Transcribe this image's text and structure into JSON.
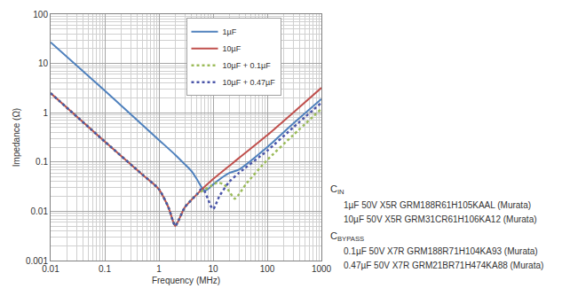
{
  "chart_data": {
    "type": "line",
    "x_label": "Frequency (MHz)",
    "y_label": "Impedance (Ω)",
    "log": true,
    "grid": true,
    "legend": "top",
    "xlim": [
      0.01,
      1000
    ],
    "xticks": [
      0.01,
      0.1,
      1,
      10,
      100,
      1000
    ],
    "ylim": [
      0.001,
      100
    ],
    "yticks": [
      0.001,
      0.01,
      0.1,
      1,
      10,
      100
    ],
    "series": [
      {
        "name": "1µF",
        "color": "#4f81bd",
        "line_style": "solid",
        "x": [
          0.01,
          0.1,
          1,
          2,
          3,
          4,
          5,
          6,
          7,
          8,
          10,
          20,
          30,
          100,
          300,
          1000
        ],
        "values": [
          27,
          2.8,
          0.28,
          0.14,
          0.09,
          0.065,
          0.045,
          0.032,
          0.026,
          0.028,
          0.035,
          0.06,
          0.07,
          0.2,
          0.6,
          1.9
        ]
      },
      {
        "name": "10µF",
        "color": "#c0504d",
        "line_style": "solid",
        "x": [
          0.01,
          0.1,
          0.5,
          1,
          1.5,
          1.8,
          2,
          2.3,
          3,
          5,
          10,
          30,
          100,
          300,
          1000
        ],
        "values": [
          2.5,
          0.26,
          0.055,
          0.028,
          0.012,
          0.0065,
          0.005,
          0.0065,
          0.012,
          0.022,
          0.045,
          0.12,
          0.35,
          1.0,
          3.2
        ]
      },
      {
        "name": "10µF + 0.1µF",
        "color": "#9bbb59",
        "line_style": "dotted",
        "x": [
          0.01,
          0.1,
          0.5,
          1,
          1.5,
          1.8,
          2,
          2.3,
          3,
          5,
          8,
          12,
          16,
          20,
          25,
          30,
          40,
          100,
          300,
          1000
        ],
        "values": [
          2.5,
          0.26,
          0.055,
          0.028,
          0.012,
          0.0065,
          0.005,
          0.0065,
          0.012,
          0.022,
          0.03,
          0.038,
          0.035,
          0.025,
          0.018,
          0.022,
          0.035,
          0.11,
          0.35,
          1.2
        ]
      },
      {
        "name": "10µF + 0.47µF",
        "color": "#4a55a8",
        "line_style": "dotted",
        "x": [
          0.01,
          0.1,
          0.5,
          1,
          1.5,
          1.8,
          2,
          2.3,
          3,
          5,
          6,
          7,
          8,
          9,
          10,
          11,
          13,
          20,
          30,
          100,
          300,
          1000
        ],
        "values": [
          2.5,
          0.26,
          0.055,
          0.028,
          0.012,
          0.0065,
          0.005,
          0.0065,
          0.012,
          0.022,
          0.028,
          0.025,
          0.018,
          0.013,
          0.011,
          0.013,
          0.02,
          0.04,
          0.06,
          0.17,
          0.5,
          1.6
        ]
      }
    ],
    "annotations": [
      {
        "text": "C",
        "subscript": "IN"
      },
      {
        "text": "1µF 50V X5R GRM188R61H105KAAL (Murata)"
      },
      {
        "text": "10µF 50V X5R GRM31CR61H106KA12 (Murata)"
      },
      {
        "text": "C",
        "subscript": "BYPASS"
      },
      {
        "text": "0.1µF 50V X7R GRM188R71H104KA93 (Murata)"
      },
      {
        "text": "0.47µF 50V X7R GRM21BR71H474KA88 (Murata)"
      }
    ]
  }
}
